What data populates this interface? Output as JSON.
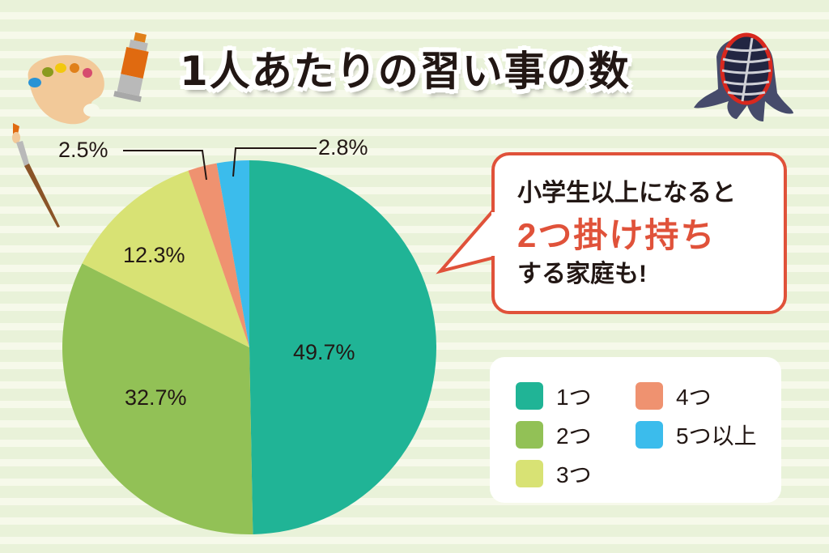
{
  "title": "1人あたりの習い事の数",
  "chart_data": {
    "type": "pie",
    "title": "1人あたりの習い事の数",
    "categories": [
      "1つ",
      "2つ",
      "3つ",
      "4つ",
      "5つ以上"
    ],
    "values": [
      49.7,
      32.7,
      12.3,
      2.5,
      2.8
    ],
    "labels": [
      "49.7%",
      "32.7%",
      "12.3%",
      "2.5%",
      "2.8%"
    ],
    "colors": [
      "#20b496",
      "#92c156",
      "#d8e274",
      "#ef9270",
      "#3bbcec"
    ],
    "start_angle": "12 o'clock, clockwise",
    "legend_position": "right-bottom"
  },
  "labels": {
    "s1": "49.7%",
    "s2": "32.7%",
    "s3": "12.3%",
    "s4": "2.5%",
    "s5": "2.8%"
  },
  "bubble": {
    "line1": "小学生以上になると",
    "line2": "2つ掛け持ち",
    "line3": "する家庭も!",
    "accent": "#e0523a"
  },
  "legend": {
    "items": [
      {
        "label": "1つ",
        "color": "#20b496"
      },
      {
        "label": "2つ",
        "color": "#92c156"
      },
      {
        "label": "3つ",
        "color": "#d8e274"
      },
      {
        "label": "4つ",
        "color": "#ef9270"
      },
      {
        "label": "5つ以上",
        "color": "#3bbcec"
      }
    ]
  },
  "icons": [
    "palette-icon",
    "paint-tube-icon",
    "paintbrush-icon",
    "kendo-mask-icon"
  ]
}
